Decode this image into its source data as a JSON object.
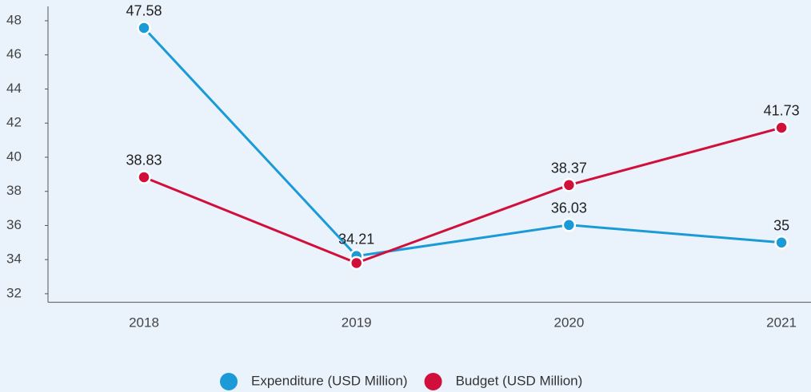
{
  "chart_data": {
    "type": "line",
    "categories": [
      "2018",
      "2019",
      "2020",
      "2021"
    ],
    "series": [
      {
        "name": "Expenditure (USD Million)",
        "color": "#1a9bd7",
        "values": [
          47.58,
          34.21,
          36.03,
          35
        ]
      },
      {
        "name": "Budget (USD Million)",
        "color": "#d0103a",
        "values": [
          38.83,
          33.8,
          38.37,
          41.73
        ],
        "value_labels": [
          "38.83",
          null,
          "38.37",
          "41.73"
        ]
      }
    ],
    "ylim": [
      31.5,
      48.8
    ],
    "yticks": [
      32,
      34,
      36,
      38,
      40,
      42,
      44,
      46,
      48
    ],
    "legend": "bottom"
  }
}
